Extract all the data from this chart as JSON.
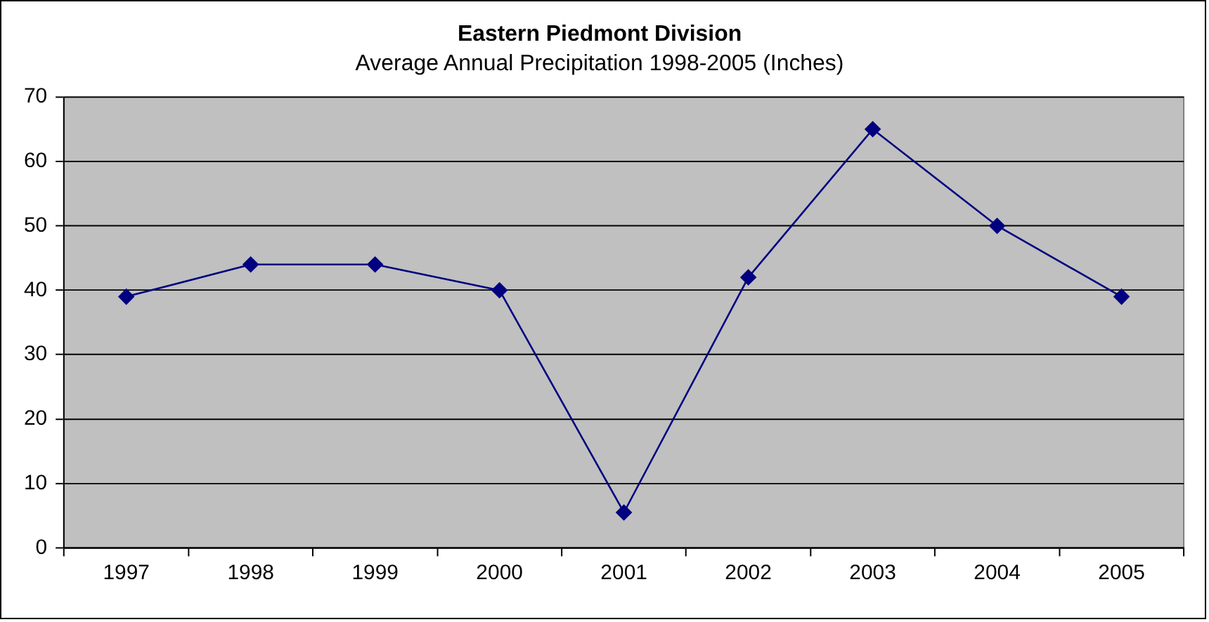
{
  "chart_data": {
    "type": "line",
    "title": "Eastern Piedmont Division",
    "subtitle": "Average Annual Precipitation 1998-2005 (Inches)",
    "categories": [
      "1997",
      "1998",
      "1999",
      "2000",
      "2001",
      "2002",
      "2003",
      "2004",
      "2005"
    ],
    "series": [
      {
        "color": "#000080",
        "values": [
          39,
          44,
          44,
          40,
          5.5,
          42,
          65,
          50,
          39
        ]
      }
    ],
    "ylim": [
      0,
      70
    ],
    "yticks": [
      0,
      10,
      20,
      30,
      40,
      50,
      60,
      70
    ],
    "grid": "y",
    "legend": false,
    "marker": "diamond",
    "line_style": "solid"
  }
}
